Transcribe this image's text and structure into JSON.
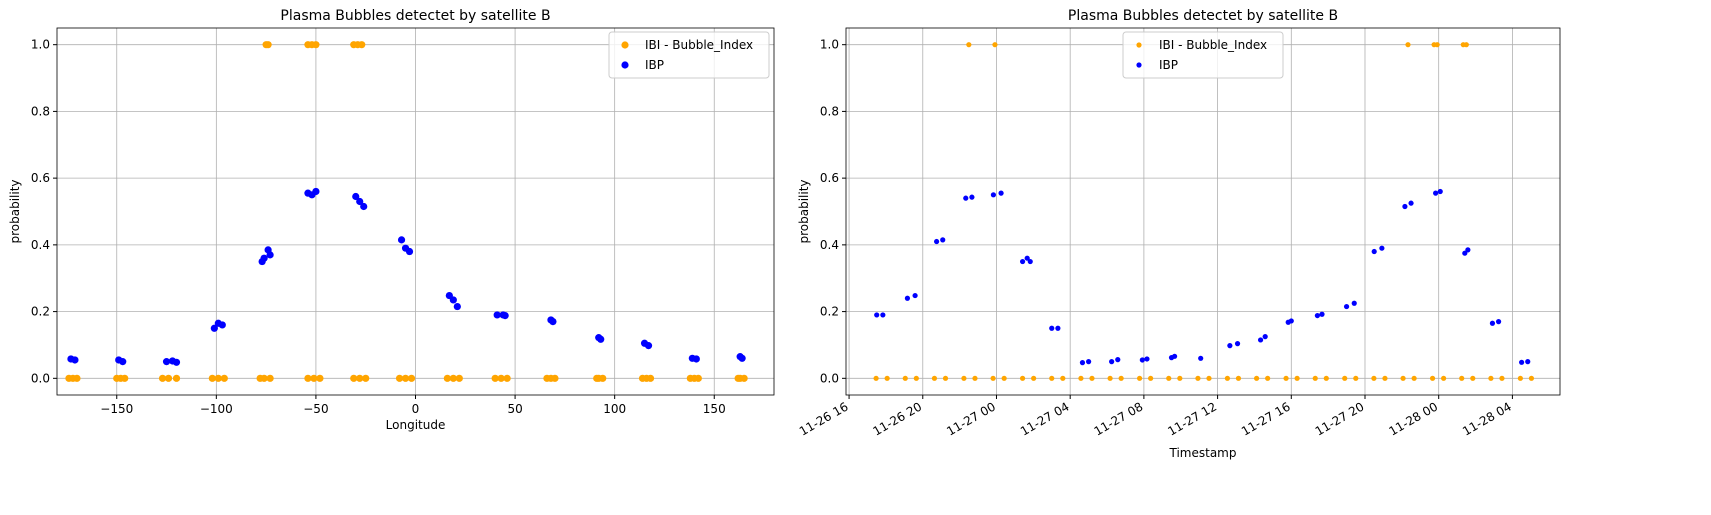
{
  "chart_data": [
    {
      "type": "scatter",
      "title": "Plasma Bubbles detectet by satellite B",
      "xlabel": "Longitude",
      "ylabel": "probability",
      "xlim": [
        -180,
        180
      ],
      "ylim": [
        -0.05,
        1.05
      ],
      "xticks": [
        {
          "value": -150,
          "label": "−150"
        },
        {
          "value": -100,
          "label": "−100"
        },
        {
          "value": -50,
          "label": "−50"
        },
        0,
        50,
        100,
        150
      ],
      "yticks": [
        {
          "value": 0,
          "label": "0.0"
        },
        {
          "value": 0.2,
          "label": "0.2"
        },
        {
          "value": 0.4,
          "label": "0.4"
        },
        {
          "value": 0.6,
          "label": "0.6"
        },
        {
          "value": 0.8,
          "label": "0.8"
        },
        {
          "value": 1,
          "label": "1.0"
        }
      ],
      "grid": true,
      "legend": "upper right",
      "series": [
        {
          "name": "IBI - Bubble_Index",
          "color": "orange",
          "x": [
            -174,
            -172,
            -170,
            -150,
            -148,
            -146,
            -127,
            -124,
            -120,
            -102,
            -99,
            -96,
            -78,
            -76,
            -73,
            -54,
            -51,
            -48,
            -31,
            -28,
            -25,
            -8,
            -5,
            -2,
            16,
            19,
            22,
            40,
            43,
            46,
            66,
            68,
            70,
            91,
            92,
            94,
            114,
            116,
            118,
            138,
            140,
            142,
            162,
            163,
            165,
            -75,
            -74,
            -54,
            -52,
            -50,
            -31,
            -29,
            -27
          ],
          "values": [
            0,
            0,
            0,
            0,
            0,
            0,
            0,
            0,
            0,
            0,
            0,
            0,
            0,
            0,
            0,
            0,
            0,
            0,
            0,
            0,
            0,
            0,
            0,
            0,
            0,
            0,
            0,
            0,
            0,
            0,
            0,
            0,
            0,
            0,
            0,
            0,
            0,
            0,
            0,
            0,
            0,
            0,
            0,
            0,
            0,
            1,
            1,
            1,
            1,
            1,
            1,
            1,
            1
          ]
        },
        {
          "name": "IBP",
          "color": "blue",
          "x": [
            -173,
            -171,
            -149,
            -147,
            -125,
            -122,
            -120,
            -101,
            -99,
            -97,
            -77,
            -76,
            -74,
            -73,
            -54,
            -52,
            -50,
            -30,
            -28,
            -26,
            -7,
            -5,
            -3,
            17,
            19,
            21,
            41,
            44,
            45,
            68,
            69,
            92,
            93,
            115,
            117,
            139,
            141,
            163,
            164
          ],
          "values": [
            0.058,
            0.055,
            0.055,
            0.05,
            0.05,
            0.052,
            0.048,
            0.15,
            0.165,
            0.16,
            0.35,
            0.36,
            0.385,
            0.37,
            0.555,
            0.55,
            0.56,
            0.545,
            0.53,
            0.515,
            0.415,
            0.39,
            0.38,
            0.248,
            0.235,
            0.215,
            0.19,
            0.19,
            0.188,
            0.175,
            0.17,
            0.122,
            0.117,
            0.105,
            0.098,
            0.06,
            0.058,
            0.065,
            0.06
          ]
        }
      ]
    },
    {
      "type": "scatter",
      "title": "Plasma Bubbles detectet by satellite B",
      "xlabel": "Timestamp",
      "ylabel": "probability",
      "xlim": [
        "11-26 15:50",
        "11-28 06:35"
      ],
      "ylim": [
        -0.05,
        1.05
      ],
      "xticks": [
        "11-26 16",
        "11-26 20",
        "11-27 00",
        "11-27 04",
        "11-27 08",
        "11-27 12",
        "11-27 16",
        "11-27 20",
        "11-28 00",
        "11-28 04"
      ],
      "yticks": [
        {
          "value": 0,
          "label": "0.0"
        },
        {
          "value": 0.2,
          "label": "0.2"
        },
        {
          "value": 0.4,
          "label": "0.4"
        },
        {
          "value": 0.6,
          "label": "0.6"
        },
        {
          "value": 0.8,
          "label": "0.8"
        },
        {
          "value": 1,
          "label": "1.0"
        }
      ],
      "grid": true,
      "legend": "upper center",
      "series": [
        {
          "name": "IBI - Bubble_Index",
          "color": "orange",
          "x": [
            "11-26 17:28",
            "11-26 18:04",
            "11-26 19:03",
            "11-26 19:39",
            "11-26 20:38",
            "11-26 21:14",
            "11-26 22:14",
            "11-26 22:50",
            "11-26 23:49",
            "11-27 00:25",
            "11-27 01:25",
            "11-27 02:01",
            "11-27 03:00",
            "11-27 03:36",
            "11-27 04:35",
            "11-27 05:11",
            "11-27 06:10",
            "11-27 06:46",
            "11-27 07:46",
            "11-27 08:22",
            "11-27 09:21",
            "11-27 09:57",
            "11-27 10:56",
            "11-27 11:32",
            "11-27 12:32",
            "11-27 13:08",
            "11-27 14:07",
            "11-27 14:43",
            "11-27 15:43",
            "11-27 16:19",
            "11-27 17:18",
            "11-27 17:54",
            "11-27 18:54",
            "11-27 19:30",
            "11-27 20:29",
            "11-27 21:05",
            "11-27 22:04",
            "11-27 22:40",
            "11-27 23:40",
            "11-28 00:16",
            "11-28 01:15",
            "11-28 01:51",
            "11-28 02:50",
            "11-28 03:26",
            "11-28 04:26",
            "11-28 05:02",
            "11-26 22:30",
            "11-26 23:55",
            "11-27 22:20",
            "11-27 23:45",
            "11-27 23:55",
            "11-28 01:20",
            "11-28 01:30"
          ],
          "values": [
            0,
            0,
            0,
            0,
            0,
            0,
            0,
            0,
            0,
            0,
            0,
            0,
            0,
            0,
            0,
            0,
            0,
            0,
            0,
            0,
            0,
            0,
            0,
            0,
            0,
            0,
            0,
            0,
            0,
            0,
            0,
            0,
            0,
            0,
            0,
            0,
            0,
            0,
            0,
            0,
            0,
            0,
            0,
            0,
            0,
            0,
            1,
            1,
            1,
            1,
            1,
            1,
            1
          ]
        },
        {
          "name": "IBP",
          "color": "blue",
          "x": [
            "11-26 17:30",
            "11-26 17:50",
            "11-26 19:10",
            "11-26 19:35",
            "11-26 20:45",
            "11-26 21:05",
            "11-26 22:20",
            "11-26 22:40",
            "11-26 23:50",
            "11-27 00:15",
            "11-27 01:25",
            "11-27 01:40",
            "11-27 01:50",
            "11-27 03:00",
            "11-27 03:20",
            "11-27 04:40",
            "11-27 05:00",
            "11-27 06:15",
            "11-27 06:35",
            "11-27 07:55",
            "11-27 08:10",
            "11-27 09:30",
            "11-27 09:40",
            "11-27 11:05",
            "11-27 12:40",
            "11-27 13:05",
            "11-27 14:20",
            "11-27 14:35",
            "11-27 15:50",
            "11-27 16:00",
            "11-27 17:25",
            "11-27 17:40",
            "11-27 19:00",
            "11-27 19:25",
            "11-27 20:30",
            "11-27 20:55",
            "11-27 22:10",
            "11-27 22:30",
            "11-27 23:50",
            "11-28 00:05",
            "11-28 01:25",
            "11-28 01:35",
            "11-28 02:55",
            "11-28 03:15",
            "11-28 04:30",
            "11-28 04:50"
          ],
          "values": [
            0.19,
            0.19,
            0.24,
            0.248,
            0.41,
            0.415,
            0.54,
            0.543,
            0.55,
            0.555,
            0.35,
            0.36,
            0.35,
            0.15,
            0.15,
            0.047,
            0.05,
            0.05,
            0.056,
            0.055,
            0.058,
            0.062,
            0.066,
            0.06,
            0.098,
            0.104,
            0.115,
            0.125,
            0.168,
            0.172,
            0.188,
            0.192,
            0.215,
            0.225,
            0.38,
            0.39,
            0.515,
            0.525,
            0.555,
            0.56,
            0.375,
            0.385,
            0.165,
            0.17,
            0.048,
            0.05
          ]
        }
      ]
    }
  ]
}
